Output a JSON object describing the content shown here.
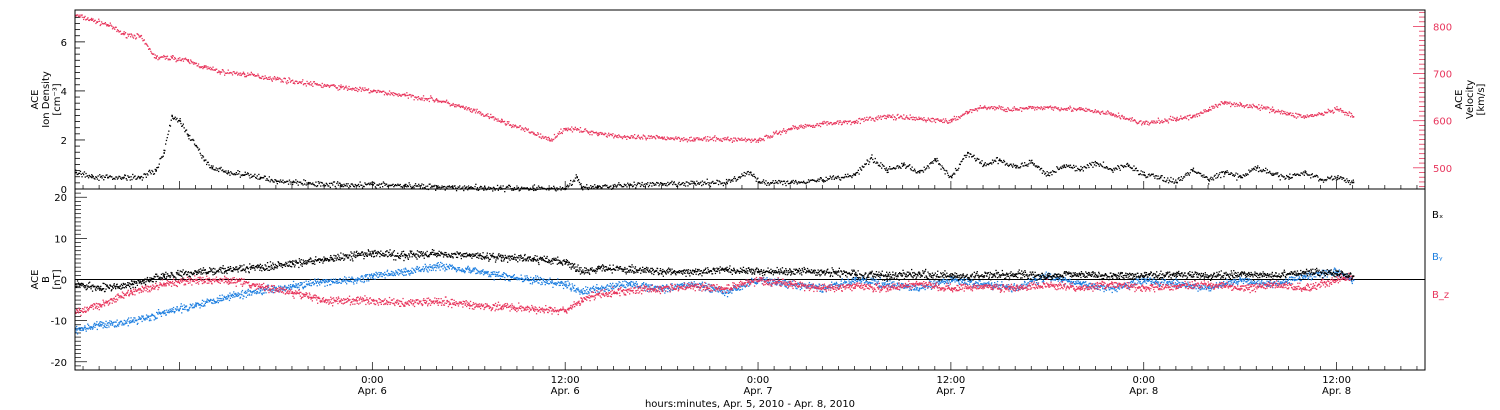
{
  "figure": {
    "xlabel": "hours:minutes, Apr.  5, 2010 - Apr.  8, 2010"
  },
  "colors": {
    "black": "#000000",
    "velocity": "#e8365d",
    "bz": "#e8365d",
    "by": "#1e7fe0",
    "bx": "#000000"
  },
  "chart_data": [
    {
      "type": "scatter",
      "panel": "top",
      "ylabel_left": [
        "ACE",
        "Ion Density",
        "[cm⁻³]"
      ],
      "ylabel_right": [
        "ACE",
        "Velocity",
        "[km/s]"
      ],
      "xlim_hours": [
        -18.5,
        65.5
      ],
      "x_ticks": [
        {
          "hour": 0,
          "time": "0:00",
          "date": "Apr. 6"
        },
        {
          "hour": 12,
          "time": "12:00",
          "date": "Apr. 6"
        },
        {
          "hour": 24,
          "time": "0:00",
          "date": "Apr. 7"
        },
        {
          "hour": 36,
          "time": "12:00",
          "date": "Apr. 7"
        },
        {
          "hour": 48,
          "time": "0:00",
          "date": "Apr. 8"
        },
        {
          "hour": 60,
          "time": "12:00",
          "date": "Apr. 8"
        }
      ],
      "ylim_left": [
        0,
        7.3
      ],
      "yticks_left": [
        0,
        2,
        4,
        6
      ],
      "ylim_right": [
        455,
        835
      ],
      "yticks_right": [
        500,
        600,
        700,
        800
      ],
      "series": [
        {
          "axis": "left",
          "color": "black",
          "points": [
            [
              -18.5,
              0.7
            ],
            [
              -17.5,
              0.5
            ],
            [
              -16.5,
              0.5
            ],
            [
              -15.5,
              0.5
            ],
            [
              -14.5,
              0.5
            ],
            [
              -13.5,
              0.8
            ],
            [
              -13.0,
              1.5
            ],
            [
              -12.5,
              3.0
            ],
            [
              -12.0,
              2.8
            ],
            [
              -11.5,
              2.2
            ],
            [
              -11.0,
              1.8
            ],
            [
              -10.5,
              1.2
            ],
            [
              -10.0,
              0.9
            ],
            [
              -9.0,
              0.7
            ],
            [
              -8.0,
              0.6
            ],
            [
              -7.0,
              0.5
            ],
            [
              -6.0,
              0.35
            ],
            [
              -5.0,
              0.3
            ],
            [
              -4.0,
              0.25
            ],
            [
              -2.0,
              0.2
            ],
            [
              0.0,
              0.2
            ],
            [
              2.0,
              0.15
            ],
            [
              4.0,
              0.12
            ],
            [
              6.0,
              0.08
            ],
            [
              8.0,
              0.05
            ],
            [
              10.0,
              0.05
            ],
            [
              12.0,
              0.05
            ],
            [
              12.7,
              0.5
            ],
            [
              13.0,
              0.1
            ],
            [
              14.0,
              0.1
            ],
            [
              16.0,
              0.2
            ],
            [
              18.0,
              0.2
            ],
            [
              20.0,
              0.25
            ],
            [
              22.0,
              0.3
            ],
            [
              23.5,
              0.7
            ],
            [
              24.0,
              0.3
            ],
            [
              26.0,
              0.3
            ],
            [
              28.0,
              0.4
            ],
            [
              30.0,
              0.6
            ],
            [
              31.0,
              1.3
            ],
            [
              32.0,
              0.8
            ],
            [
              33.0,
              1.0
            ],
            [
              34.0,
              0.7
            ],
            [
              35.0,
              1.2
            ],
            [
              36.0,
              0.5
            ],
            [
              37.0,
              1.5
            ],
            [
              38.0,
              1.0
            ],
            [
              39.0,
              1.2
            ],
            [
              40.0,
              0.9
            ],
            [
              41.0,
              1.1
            ],
            [
              42.0,
              0.6
            ],
            [
              43.0,
              1.0
            ],
            [
              44.0,
              0.8
            ],
            [
              45.0,
              1.1
            ],
            [
              46.0,
              0.8
            ],
            [
              47.0,
              1.0
            ],
            [
              48.0,
              0.6
            ],
            [
              49.0,
              0.5
            ],
            [
              50.0,
              0.3
            ],
            [
              51.0,
              0.8
            ],
            [
              52.0,
              0.4
            ],
            [
              53.0,
              0.7
            ],
            [
              54.0,
              0.5
            ],
            [
              55.0,
              0.9
            ],
            [
              56.0,
              0.6
            ],
            [
              57.0,
              0.5
            ],
            [
              58.0,
              0.7
            ],
            [
              59.0,
              0.4
            ],
            [
              60.0,
              0.5
            ],
            [
              61.0,
              0.3
            ]
          ]
        },
        {
          "axis": "right",
          "color": "velocity",
          "points": [
            [
              -18.5,
              825
            ],
            [
              -17.5,
              815
            ],
            [
              -16.5,
              805
            ],
            [
              -15.5,
              785
            ],
            [
              -14.5,
              780
            ],
            [
              -13.5,
              735
            ],
            [
              -12.5,
              735
            ],
            [
              -11.5,
              728
            ],
            [
              -10.5,
              715
            ],
            [
              -9.5,
              705
            ],
            [
              -8.0,
              700
            ],
            [
              -6.0,
              690
            ],
            [
              -4.0,
              680
            ],
            [
              -2.0,
              672
            ],
            [
              0.0,
              664
            ],
            [
              2.0,
              655
            ],
            [
              4.0,
              645
            ],
            [
              6.0,
              625
            ],
            [
              8.0,
              600
            ],
            [
              10.0,
              575
            ],
            [
              11.0,
              560
            ],
            [
              12.0,
              585
            ],
            [
              14.0,
              575
            ],
            [
              16.0,
              565
            ],
            [
              18.0,
              565
            ],
            [
              20.0,
              562
            ],
            [
              22.0,
              562
            ],
            [
              24.0,
              560
            ],
            [
              26.0,
              585
            ],
            [
              28.0,
              595
            ],
            [
              30.0,
              600
            ],
            [
              32.0,
              610
            ],
            [
              34.0,
              605
            ],
            [
              36.0,
              600
            ],
            [
              37.0,
              620
            ],
            [
              38.0,
              630
            ],
            [
              40.0,
              625
            ],
            [
              42.0,
              630
            ],
            [
              44.0,
              625
            ],
            [
              46.0,
              615
            ],
            [
              48.0,
              595
            ],
            [
              50.0,
              605
            ],
            [
              51.0,
              610
            ],
            [
              52.0,
              625
            ],
            [
              53.0,
              640
            ],
            [
              54.0,
              635
            ],
            [
              55.0,
              630
            ],
            [
              56.0,
              625
            ],
            [
              57.0,
              615
            ],
            [
              58.0,
              610
            ],
            [
              59.0,
              615
            ],
            [
              60.0,
              625
            ],
            [
              61.0,
              610
            ]
          ]
        }
      ]
    },
    {
      "type": "scatter",
      "panel": "bottom",
      "ylabel_left": [
        "ACE",
        "B",
        "[nT]"
      ],
      "xlim_hours": [
        -18.5,
        65.5
      ],
      "ylim": [
        -22,
        22
      ],
      "yticks": [
        -20,
        -10,
        0,
        10,
        20
      ],
      "zero_line": true,
      "legend": "right",
      "series": [
        {
          "name": "Bₓ",
          "color": "bx",
          "points": [
            [
              -18.5,
              -1
            ],
            [
              -17.0,
              -2
            ],
            [
              -15.0,
              -1
            ],
            [
              -13.0,
              1
            ],
            [
              -11.0,
              2
            ],
            [
              -9.0,
              2.5
            ],
            [
              -7.0,
              3
            ],
            [
              -5.0,
              4
            ],
            [
              -3.0,
              5
            ],
            [
              -1.0,
              6
            ],
            [
              0.0,
              6.5
            ],
            [
              2.0,
              6
            ],
            [
              4.0,
              6.5
            ],
            [
              6.0,
              6
            ],
            [
              8.0,
              5.5
            ],
            [
              10.0,
              5
            ],
            [
              12.0,
              4.5
            ],
            [
              13.0,
              2
            ],
            [
              14.0,
              3
            ],
            [
              16.0,
              2.5
            ],
            [
              18.0,
              2
            ],
            [
              20.0,
              2
            ],
            [
              22.0,
              2.5
            ],
            [
              24.0,
              2
            ],
            [
              26.0,
              2
            ],
            [
              28.0,
              2
            ],
            [
              30.0,
              1.5
            ],
            [
              32.0,
              1
            ],
            [
              34.0,
              1.5
            ],
            [
              36.0,
              1
            ],
            [
              38.0,
              1
            ],
            [
              40.0,
              1.5
            ],
            [
              42.0,
              1
            ],
            [
              44.0,
              1.5
            ],
            [
              46.0,
              1
            ],
            [
              48.0,
              1
            ],
            [
              50.0,
              1.5
            ],
            [
              52.0,
              1
            ],
            [
              54.0,
              1.5
            ],
            [
              56.0,
              1
            ],
            [
              58.0,
              2
            ],
            [
              60.0,
              1.5
            ],
            [
              61.0,
              1
            ]
          ]
        },
        {
          "name": "Bᵧ",
          "color": "by",
          "points": [
            [
              -18.5,
              -12
            ],
            [
              -17.0,
              -11
            ],
            [
              -15.0,
              -10
            ],
            [
              -13.0,
              -8
            ],
            [
              -11.0,
              -6
            ],
            [
              -9.0,
              -4
            ],
            [
              -7.0,
              -2.5
            ],
            [
              -5.0,
              -1.5
            ],
            [
              -3.0,
              -0.5
            ],
            [
              -1.0,
              0
            ],
            [
              0.0,
              1
            ],
            [
              2.0,
              2
            ],
            [
              4.0,
              3.5
            ],
            [
              6.0,
              2.5
            ],
            [
              8.0,
              1
            ],
            [
              10.0,
              0
            ],
            [
              12.0,
              -1
            ],
            [
              13.0,
              -3
            ],
            [
              14.0,
              -2
            ],
            [
              16.0,
              -1
            ],
            [
              18.0,
              -2
            ],
            [
              20.0,
              -1
            ],
            [
              22.0,
              -3
            ],
            [
              24.0,
              0
            ],
            [
              26.0,
              -1
            ],
            [
              28.0,
              -2
            ],
            [
              30.0,
              0
            ],
            [
              32.0,
              -1
            ],
            [
              34.0,
              -2
            ],
            [
              36.0,
              0
            ],
            [
              38.0,
              -1
            ],
            [
              40.0,
              -2
            ],
            [
              42.0,
              1
            ],
            [
              44.0,
              -1
            ],
            [
              46.0,
              -2
            ],
            [
              48.0,
              0
            ],
            [
              50.0,
              -1
            ],
            [
              52.0,
              -2
            ],
            [
              54.0,
              0
            ],
            [
              56.0,
              -1
            ],
            [
              58.0,
              1
            ],
            [
              60.0,
              2
            ],
            [
              61.0,
              0
            ]
          ]
        },
        {
          "name": "B_z",
          "color": "bz",
          "points": [
            [
              -18.5,
              -8
            ],
            [
              -17.0,
              -6
            ],
            [
              -15.0,
              -3
            ],
            [
              -13.0,
              -1
            ],
            [
              -11.0,
              0
            ],
            [
              -9.0,
              0
            ],
            [
              -7.0,
              -1.5
            ],
            [
              -5.0,
              -3
            ],
            [
              -3.0,
              -5
            ],
            [
              -1.0,
              -5
            ],
            [
              0.0,
              -5
            ],
            [
              2.0,
              -5.5
            ],
            [
              4.0,
              -5
            ],
            [
              6.0,
              -6
            ],
            [
              8.0,
              -6.5
            ],
            [
              10.0,
              -7
            ],
            [
              12.0,
              -7.5
            ],
            [
              13.0,
              -5
            ],
            [
              14.0,
              -3.5
            ],
            [
              16.0,
              -2.5
            ],
            [
              18.0,
              -2
            ],
            [
              20.0,
              -1.5
            ],
            [
              22.0,
              -2
            ],
            [
              24.0,
              0
            ],
            [
              26.0,
              -1
            ],
            [
              28.0,
              -2
            ],
            [
              30.0,
              -1.5
            ],
            [
              32.0,
              -2
            ],
            [
              34.0,
              -1
            ],
            [
              36.0,
              -2
            ],
            [
              38.0,
              -1.5
            ],
            [
              40.0,
              -2
            ],
            [
              42.0,
              -1
            ],
            [
              44.0,
              -2
            ],
            [
              46.0,
              -1
            ],
            [
              48.0,
              -2
            ],
            [
              50.0,
              -1.5
            ],
            [
              52.0,
              -1
            ],
            [
              54.0,
              -2
            ],
            [
              56.0,
              -1
            ],
            [
              58.0,
              -2
            ],
            [
              60.0,
              0
            ],
            [
              61.0,
              1
            ]
          ]
        }
      ]
    }
  ]
}
